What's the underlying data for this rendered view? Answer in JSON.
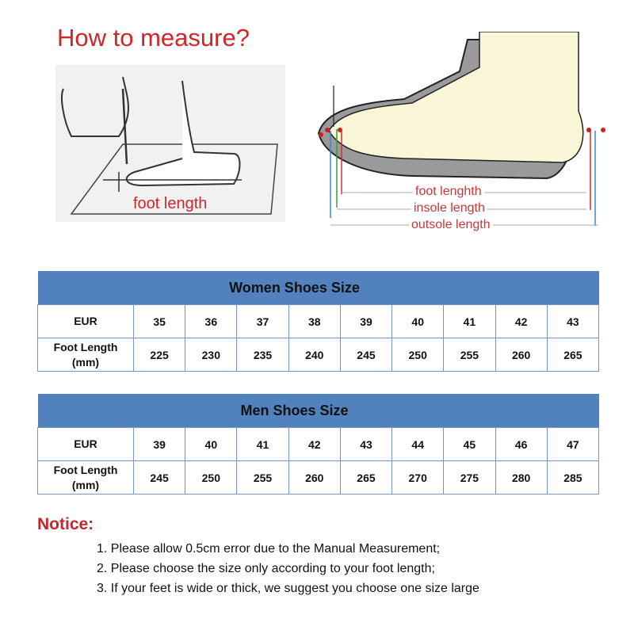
{
  "title": "How to measure?",
  "left_illustration": {
    "label": "foot length"
  },
  "right_illustration": {
    "labels": [
      "foot lenghth",
      "insole length",
      "outsole length"
    ]
  },
  "colors": {
    "title_red": "#d0262a",
    "table_header": "#5282bd",
    "table_border": "#7a97c0"
  },
  "women_table": {
    "title": "Women Shoes Size",
    "row_labels": [
      "EUR",
      "Foot Length (mm)"
    ],
    "eur": [
      "35",
      "36",
      "37",
      "38",
      "39",
      "40",
      "41",
      "42",
      "43"
    ],
    "foot_length_mm": [
      "225",
      "230",
      "235",
      "240",
      "245",
      "250",
      "255",
      "260",
      "265"
    ]
  },
  "men_table": {
    "title": "Men Shoes Size",
    "row_labels": [
      "EUR",
      "Foot Length (mm)"
    ],
    "eur": [
      "39",
      "40",
      "41",
      "42",
      "43",
      "44",
      "45",
      "46",
      "47"
    ],
    "foot_length_mm": [
      "245",
      "250",
      "255",
      "260",
      "265",
      "270",
      "275",
      "280",
      "285"
    ]
  },
  "notice": {
    "heading": "Notice:",
    "items": [
      "1. Please allow 0.5cm error due to the Manual Measurement;",
      "2. Please choose the size only according to your foot length;",
      "3. If your feet is wide or thick, we suggest you choose one size large"
    ]
  }
}
